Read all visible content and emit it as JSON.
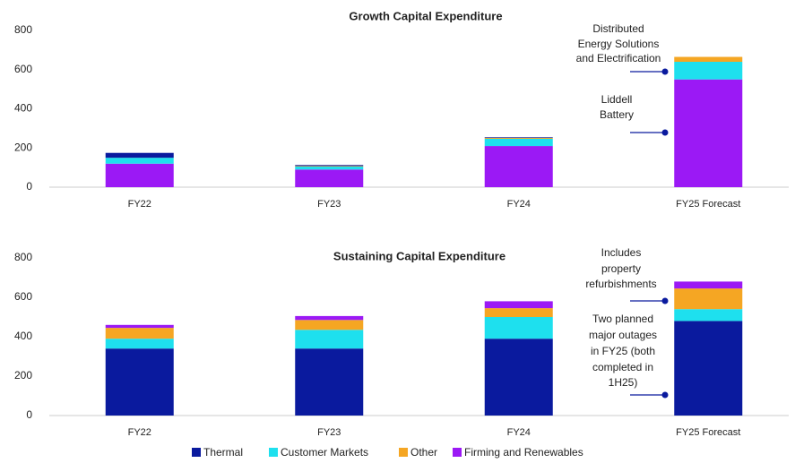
{
  "chart_data": [
    {
      "type": "bar",
      "stacked": true,
      "title": "Growth Capital Expenditure",
      "categories": [
        "FY22",
        "FY23",
        "FY24",
        "FY25 Forecast"
      ],
      "ylim": [
        0,
        800
      ],
      "yticks": [
        0,
        200,
        400,
        600,
        800
      ],
      "series": [
        {
          "name": "Firming and Renewables",
          "color": "#9b19f5",
          "values": [
            120,
            90,
            210,
            550
          ]
        },
        {
          "name": "Customer Markets",
          "color": "#1ee0ee",
          "values": [
            30,
            15,
            37,
            90
          ]
        },
        {
          "name": "Other",
          "color": "#f5a623",
          "values": [
            0,
            3,
            5,
            25
          ]
        },
        {
          "name": "Thermal",
          "color": "#0a1a9e",
          "values": [
            25,
            5,
            3,
            0
          ]
        }
      ],
      "annotations": [
        {
          "lines": [
            "Distributed",
            "Energy Solutions",
            "and Electrification"
          ]
        },
        {
          "lines": [
            "Liddell",
            "Battery"
          ]
        }
      ]
    },
    {
      "type": "bar",
      "stacked": true,
      "title": "Sustaining Capital Expenditure",
      "categories": [
        "FY22",
        "FY23",
        "FY24",
        "FY25 Forecast"
      ],
      "ylim": [
        0,
        800
      ],
      "yticks": [
        0,
        200,
        400,
        600,
        800
      ],
      "series": [
        {
          "name": "Thermal",
          "color": "#0a1a9e",
          "values": [
            340,
            340,
            390,
            480
          ]
        },
        {
          "name": "Customer Markets",
          "color": "#1ee0ee",
          "values": [
            50,
            95,
            110,
            60
          ]
        },
        {
          "name": "Other",
          "color": "#f5a623",
          "values": [
            55,
            50,
            45,
            105
          ]
        },
        {
          "name": "Firming and Renewables",
          "color": "#9b19f5",
          "values": [
            15,
            20,
            35,
            35
          ]
        }
      ],
      "annotations": [
        {
          "lines": [
            "Includes",
            "property",
            "refurbishments"
          ]
        },
        {
          "lines": [
            "Two planned",
            "major outages",
            "in FY25 (both",
            "completed in",
            "1H25)"
          ]
        }
      ]
    }
  ]
}
